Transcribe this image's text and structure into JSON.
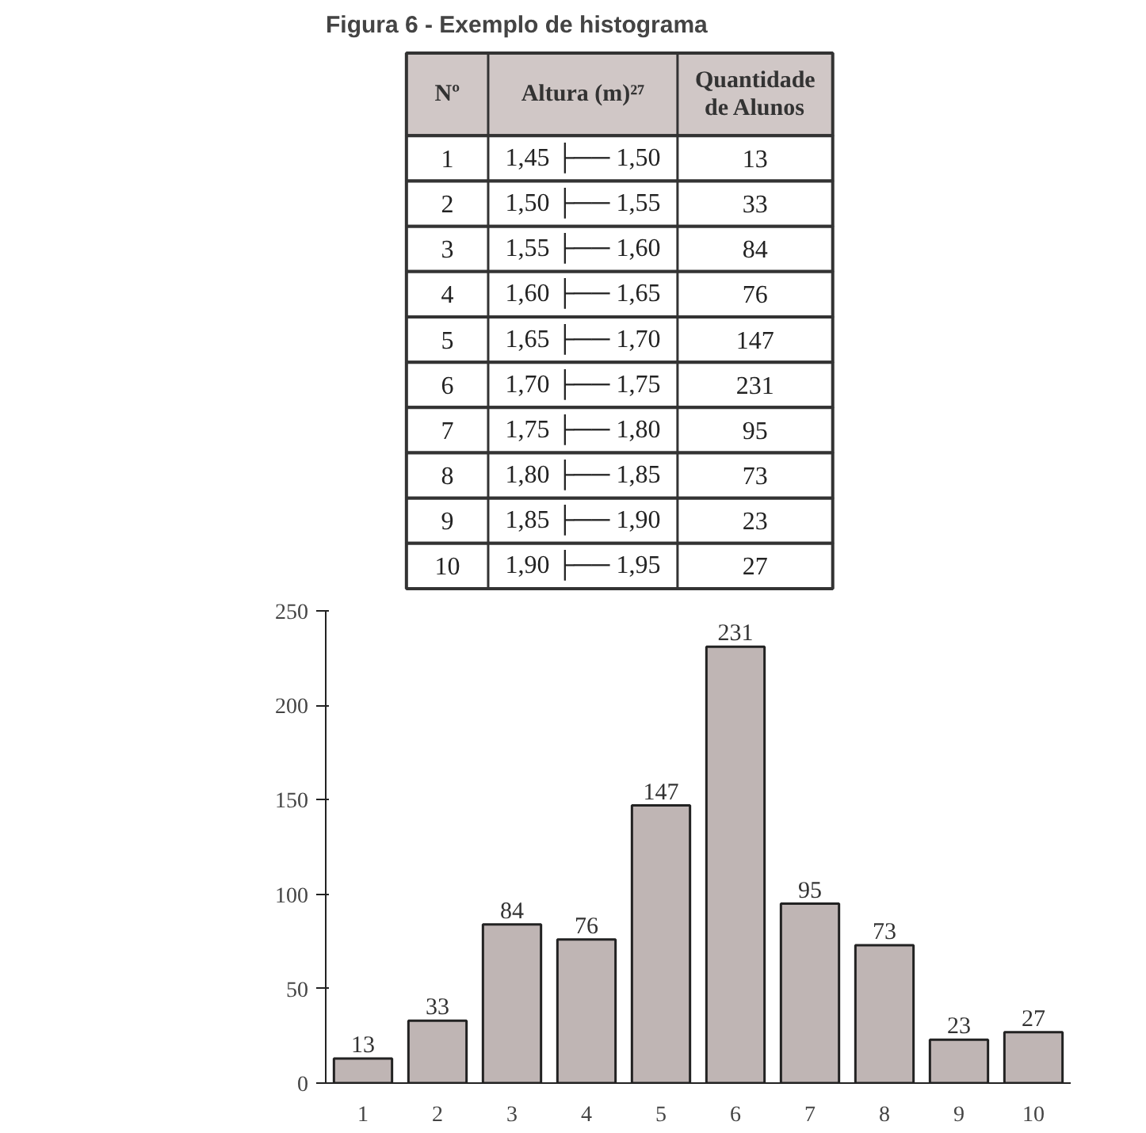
{
  "chart_data": {
    "type": "bar",
    "title": "Figura 6 - Exemplo de histograma",
    "categories": [
      "1",
      "2",
      "3",
      "4",
      "5",
      "6",
      "7",
      "8",
      "9",
      "10"
    ],
    "values": [
      13,
      33,
      84,
      76,
      147,
      231,
      95,
      73,
      23,
      27
    ],
    "color": "#bfb5b4",
    "ylim": [
      0,
      250
    ],
    "yticks": [
      0,
      50,
      100,
      150,
      200,
      250
    ],
    "data_labels": true,
    "grid": false,
    "annotations": [
      "Nº",
      "Altura (m)²⁷",
      "Quantidade de Alunos",
      "1,45 ├── 1,50",
      "1,50 ├── 1,55",
      "1,55 ├── 1,60",
      "1,60 ├── 1,65",
      "1,65 ├── 1,70",
      "1,70 ├── 1,75",
      "1,75 ├── 1,80",
      "1,80 ├── 1,85",
      "1,85 ├── 1,90",
      "1,90 ├── 1,95",
      "13",
      "33",
      "84",
      "76",
      "147",
      "231",
      "95",
      "73",
      "23",
      "27"
    ]
  }
}
